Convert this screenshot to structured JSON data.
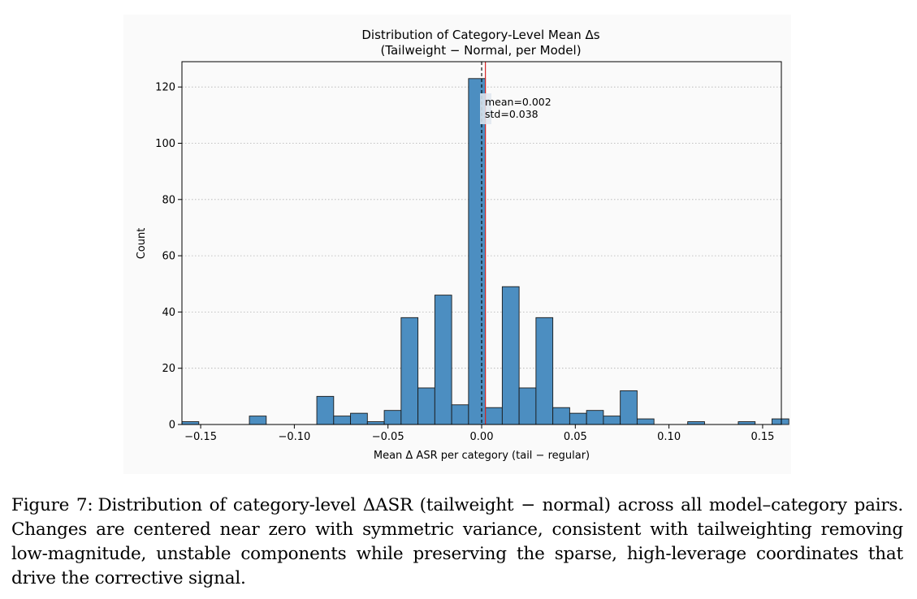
{
  "chart_data": {
    "type": "bar",
    "title": "Distribution of Category-Level Mean Δs",
    "subtitle": "(Tailweight − Normal, per Model)",
    "xlabel": "Mean Δ ASR per category (tail − regular)",
    "ylabel": "Count",
    "xlim": [
      -0.16,
      0.16
    ],
    "ylim": [
      0,
      129
    ],
    "grid": "y-dotted",
    "bar_color": "#4c8ec1",
    "mean_line_color": "#d62728",
    "zero_line_color": "#000000",
    "x_tick_values": [
      -0.15,
      -0.1,
      -0.05,
      0.0,
      0.05,
      0.1,
      0.15
    ],
    "x_tick_labels": [
      "−0.15",
      "−0.10",
      "−0.05",
      "0.00",
      "0.05",
      "0.10",
      "0.15"
    ],
    "y_tick_values": [
      0,
      20,
      40,
      60,
      80,
      100,
      120
    ],
    "y_tick_labels": [
      "0",
      "20",
      "40",
      "60",
      "80",
      "100",
      "120"
    ],
    "bins": [
      {
        "start": -0.16,
        "end": -0.151,
        "count": 1
      },
      {
        "start": -0.124,
        "end": -0.115,
        "count": 3
      },
      {
        "start": -0.088,
        "end": -0.079,
        "count": 10
      },
      {
        "start": -0.079,
        "end": -0.07,
        "count": 3
      },
      {
        "start": -0.07,
        "end": -0.061,
        "count": 4
      },
      {
        "start": -0.061,
        "end": -0.052,
        "count": 1
      },
      {
        "start": -0.052,
        "end": -0.043,
        "count": 5
      },
      {
        "start": -0.043,
        "end": -0.034,
        "count": 38
      },
      {
        "start": -0.034,
        "end": -0.025,
        "count": 13
      },
      {
        "start": -0.025,
        "end": -0.016,
        "count": 46
      },
      {
        "start": -0.016,
        "end": -0.007,
        "count": 7
      },
      {
        "start": -0.007,
        "end": 0.002,
        "count": 123
      },
      {
        "start": 0.002,
        "end": 0.011,
        "count": 6
      },
      {
        "start": 0.011,
        "end": 0.02,
        "count": 49
      },
      {
        "start": 0.02,
        "end": 0.029,
        "count": 13
      },
      {
        "start": 0.029,
        "end": 0.038,
        "count": 38
      },
      {
        "start": 0.038,
        "end": 0.047,
        "count": 6
      },
      {
        "start": 0.047,
        "end": 0.056,
        "count": 4
      },
      {
        "start": 0.056,
        "end": 0.065,
        "count": 5
      },
      {
        "start": 0.065,
        "end": 0.074,
        "count": 3
      },
      {
        "start": 0.074,
        "end": 0.083,
        "count": 12
      },
      {
        "start": 0.083,
        "end": 0.092,
        "count": 2
      },
      {
        "start": 0.11,
        "end": 0.119,
        "count": 1
      },
      {
        "start": 0.137,
        "end": 0.146,
        "count": 1
      },
      {
        "start": 0.155,
        "end": 0.164,
        "count": 2
      }
    ],
    "mean_value": 0.002,
    "zero_line_value": 0.0,
    "annotation": {
      "mean_text": "mean=0.002",
      "std_text": "std=0.038"
    }
  },
  "caption": {
    "label": "Figure 7:",
    "text": "Distribution of category-level ΔASR (tailweight − normal) across all model–category pairs. Changes are centered near zero with symmetric variance, consistent with tailweighting removing low-magnitude, unstable components while preserving the sparse, high-leverage coordinates that drive the corrective signal."
  }
}
